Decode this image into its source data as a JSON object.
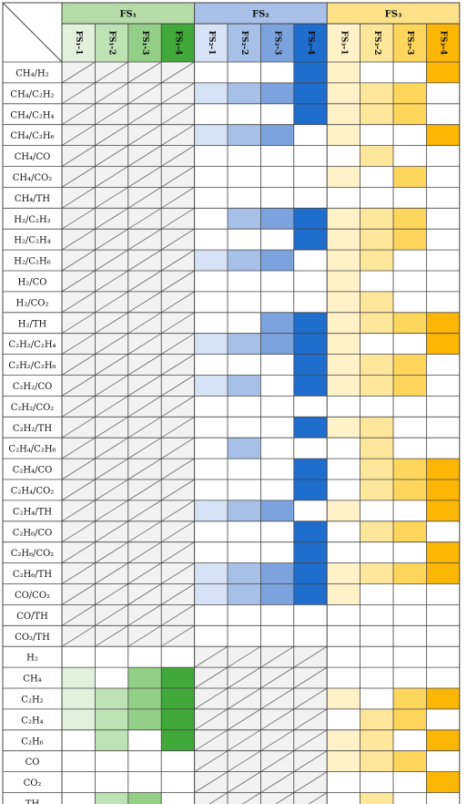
{
  "groups": [
    {
      "key": "g1",
      "label": "FS₁",
      "header_color": "#b6dcaa",
      "subs": [
        "FS₁-1",
        "FS₁-2",
        "FS₁-3",
        "FS₁-4"
      ],
      "sub_colors": [
        "#e3f1dc",
        "#bfe2b4",
        "#93cf86",
        "#41a83a"
      ]
    },
    {
      "key": "g2",
      "label": "FS₂",
      "header_color": "#a9c0e8",
      "subs": [
        "FS₂-1",
        "FS₂-2",
        "FS₂-3",
        "FS₂-4"
      ],
      "sub_colors": [
        "#d6e2f5",
        "#a6c0e8",
        "#7da3df",
        "#1f6dcc"
      ]
    },
    {
      "key": "g3",
      "label": "FS₃",
      "header_color": "#fde28a",
      "subs": [
        "FS₃-1",
        "FS₃-2",
        "FS₃-3",
        "FS₃-4"
      ],
      "sub_colors": [
        "#fff1c8",
        "#fee79a",
        "#fed65c",
        "#fcb706"
      ]
    }
  ],
  "rows": [
    {
      "label": "CH₄/H₂",
      "g1": null,
      "g2": [
        0,
        0,
        0,
        1
      ],
      "g3": [
        1,
        0,
        0,
        1
      ]
    },
    {
      "label": "CH₄/C₂H₂",
      "g1": null,
      "g2": [
        1,
        1,
        1,
        1
      ],
      "g3": [
        1,
        1,
        1,
        0
      ]
    },
    {
      "label": "CH₄/C₂H₄",
      "g1": null,
      "g2": [
        0,
        0,
        0,
        1
      ],
      "g3": [
        1,
        1,
        1,
        0
      ]
    },
    {
      "label": "CH₄/C₂H₆",
      "g1": null,
      "g2": [
        1,
        1,
        1,
        0
      ],
      "g3": [
        1,
        0,
        0,
        1
      ]
    },
    {
      "label": "CH₄/CO",
      "g1": null,
      "g2": [
        0,
        0,
        0,
        0
      ],
      "g3": [
        0,
        1,
        0,
        0
      ]
    },
    {
      "label": "CH₄/CO₂",
      "g1": null,
      "g2": [
        0,
        0,
        0,
        0
      ],
      "g3": [
        1,
        0,
        1,
        0
      ]
    },
    {
      "label": "CH₄/TH",
      "g1": null,
      "g2": [
        0,
        0,
        0,
        0
      ],
      "g3": [
        0,
        0,
        0,
        0
      ]
    },
    {
      "label": "H₂/C₂H₂",
      "g1": null,
      "g2": [
        0,
        1,
        1,
        1
      ],
      "g3": [
        1,
        1,
        1,
        0
      ]
    },
    {
      "label": "H₂/C₂H₄",
      "g1": null,
      "g2": [
        0,
        0,
        0,
        1
      ],
      "g3": [
        1,
        1,
        1,
        0
      ]
    },
    {
      "label": "H₂/C₂H₆",
      "g1": null,
      "g2": [
        1,
        1,
        1,
        0
      ],
      "g3": [
        1,
        1,
        0,
        0
      ]
    },
    {
      "label": "H₂/CO",
      "g1": null,
      "g2": [
        0,
        0,
        0,
        0
      ],
      "g3": [
        1,
        0,
        0,
        0
      ]
    },
    {
      "label": "H₂/CO₂",
      "g1": null,
      "g2": [
        0,
        0,
        0,
        0
      ],
      "g3": [
        1,
        1,
        0,
        0
      ]
    },
    {
      "label": "H₂/TH",
      "g1": null,
      "g2": [
        0,
        0,
        1,
        1
      ],
      "g3": [
        1,
        1,
        1,
        1
      ]
    },
    {
      "label": "C₂H₂/C₂H₄",
      "g1": null,
      "g2": [
        1,
        1,
        1,
        1
      ],
      "g3": [
        1,
        0,
        0,
        1
      ]
    },
    {
      "label": "C₂H₂/C₂H₆",
      "g1": null,
      "g2": [
        0,
        0,
        0,
        1
      ],
      "g3": [
        1,
        1,
        1,
        0
      ]
    },
    {
      "label": "C₂H₂/CO",
      "g1": null,
      "g2": [
        1,
        1,
        0,
        1
      ],
      "g3": [
        1,
        1,
        1,
        0
      ]
    },
    {
      "label": "C₂H₂/CO₂",
      "g1": null,
      "g2": [
        0,
        0,
        0,
        0
      ],
      "g3": [
        0,
        0,
        0,
        0
      ]
    },
    {
      "label": "C₂H₂/TH",
      "g1": null,
      "g2": [
        0,
        0,
        0,
        1
      ],
      "g3": [
        1,
        1,
        0,
        0
      ]
    },
    {
      "label": "C₂H₄/C₂H₆",
      "g1": null,
      "g2": [
        0,
        1,
        0,
        0
      ],
      "g3": [
        0,
        1,
        0,
        0
      ]
    },
    {
      "label": "C₂H₄/CO",
      "g1": null,
      "g2": [
        0,
        0,
        0,
        1
      ],
      "g3": [
        0,
        1,
        1,
        1
      ]
    },
    {
      "label": "C₂H₄/CO₂",
      "g1": null,
      "g2": [
        0,
        0,
        0,
        1
      ],
      "g3": [
        0,
        1,
        1,
        1
      ]
    },
    {
      "label": "C₂H₄/TH",
      "g1": null,
      "g2": [
        1,
        1,
        1,
        0
      ],
      "g3": [
        1,
        0,
        0,
        1
      ]
    },
    {
      "label": "C₂H₆/CO",
      "g1": null,
      "g2": [
        0,
        0,
        0,
        1
      ],
      "g3": [
        0,
        1,
        1,
        0
      ]
    },
    {
      "label": "C₂H₆/CO₂",
      "g1": null,
      "g2": [
        0,
        0,
        0,
        1
      ],
      "g3": [
        0,
        0,
        0,
        1
      ]
    },
    {
      "label": "C₂H₆/TH",
      "g1": null,
      "g2": [
        1,
        1,
        1,
        1
      ],
      "g3": [
        1,
        1,
        1,
        1
      ]
    },
    {
      "label": "CO/CO₂",
      "g1": null,
      "g2": [
        1,
        1,
        1,
        1
      ],
      "g3": [
        1,
        0,
        0,
        0
      ]
    },
    {
      "label": "CO/TH",
      "g1": null,
      "g2": [
        0,
        0,
        0,
        0
      ],
      "g3": [
        0,
        0,
        0,
        0
      ]
    },
    {
      "label": "CO₂/TH",
      "g1": null,
      "g2": [
        0,
        0,
        0,
        0
      ],
      "g3": [
        0,
        0,
        0,
        0
      ]
    },
    {
      "label": "H₂",
      "g1": [
        0,
        0,
        0,
        0
      ],
      "g2": null,
      "g3": [
        0,
        0,
        0,
        0
      ]
    },
    {
      "label": "CH₄",
      "g1": [
        1,
        0,
        1,
        1
      ],
      "g2": null,
      "g3": [
        0,
        0,
        0,
        0
      ]
    },
    {
      "label": "C₂H₂",
      "g1": [
        1,
        1,
        1,
        1
      ],
      "g2": null,
      "g3": [
        1,
        0,
        1,
        1
      ]
    },
    {
      "label": "C₂H₄",
      "g1": [
        1,
        1,
        1,
        1
      ],
      "g2": null,
      "g3": [
        0,
        1,
        1,
        0
      ]
    },
    {
      "label": "C₂H₆",
      "g1": [
        0,
        1,
        0,
        1
      ],
      "g2": null,
      "g3": [
        1,
        1,
        0,
        1
      ]
    },
    {
      "label": "CO",
      "g1": [
        0,
        0,
        0,
        0
      ],
      "g2": null,
      "g3": [
        1,
        1,
        1,
        0
      ]
    },
    {
      "label": "CO₂",
      "g1": [
        0,
        0,
        0,
        0
      ],
      "g2": null,
      "g3": [
        0,
        0,
        0,
        1
      ]
    },
    {
      "label": "TH",
      "g1": [
        0,
        1,
        1,
        0
      ],
      "g2": null,
      "g3": [
        0,
        1,
        0,
        0
      ]
    }
  ],
  "colors": {
    "na_fill": "#f2f2f2",
    "grid": "#444444",
    "empty": "#ffffff"
  }
}
